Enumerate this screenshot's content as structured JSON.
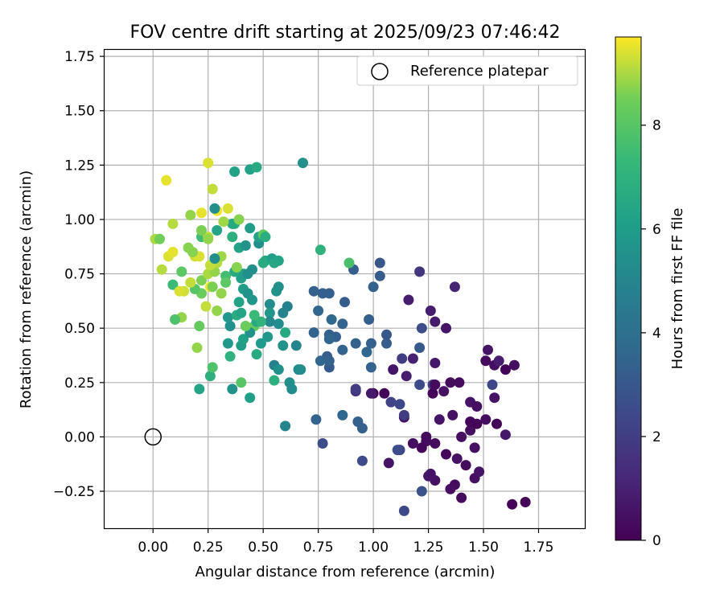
{
  "chart_data": {
    "type": "scatter",
    "title": "FOV centre drift starting at 2025/09/23 07:46:42",
    "xlabel": "Angular distance from reference (arcmin)",
    "ylabel": "Rotation from reference (arcmin)",
    "xlim": [
      -0.22,
      1.96
    ],
    "ylim": [
      -0.42,
      1.78
    ],
    "x_ticks": [
      "0.00",
      "0.25",
      "0.50",
      "0.75",
      "1.00",
      "1.25",
      "1.50",
      "1.75"
    ],
    "y_ticks": [
      "−0.25",
      "0.00",
      "0.25",
      "0.50",
      "0.75",
      "1.00",
      "1.25",
      "1.50",
      "1.75"
    ],
    "x_tick_values": [
      0,
      0.25,
      0.5,
      0.75,
      1.0,
      1.25,
      1.5,
      1.75
    ],
    "y_tick_values": [
      -0.25,
      0,
      0.25,
      0.5,
      0.75,
      1.0,
      1.25,
      1.5,
      1.75
    ],
    "grid": true,
    "legend": {
      "placement": "top-right",
      "entries": [
        "Reference platepar"
      ]
    },
    "reference_point": {
      "name": "Reference platepar",
      "x": 0.0,
      "y": 0.0
    },
    "colorbar": {
      "label": "Hours from first FF file",
      "range": [
        0,
        9.7
      ],
      "ticks": [
        "0",
        "2",
        "4",
        "6",
        "8"
      ],
      "tick_values": [
        0,
        2,
        4,
        6,
        8
      ],
      "colormap": "viridis"
    },
    "points": [
      [
        1.69,
        -0.3,
        0.1
      ],
      [
        1.63,
        -0.31,
        0.1
      ],
      [
        1.4,
        -0.28,
        0.3
      ],
      [
        1.37,
        -0.22,
        0.3
      ],
      [
        1.35,
        -0.24,
        0.4
      ],
      [
        1.28,
        -0.2,
        0.5
      ],
      [
        1.26,
        -0.17,
        0.6
      ],
      [
        1.25,
        -0.18,
        0.6
      ],
      [
        1.22,
        -0.25,
        2.8
      ],
      [
        1.14,
        -0.34,
        2.4
      ],
      [
        1.46,
        -0.19,
        0.5
      ],
      [
        1.48,
        -0.16,
        0.6
      ],
      [
        1.42,
        -0.13,
        0.3
      ],
      [
        1.46,
        -0.05,
        0.5
      ],
      [
        1.38,
        -0.1,
        0.5
      ],
      [
        1.33,
        -0.08,
        0.2
      ],
      [
        1.28,
        -0.03,
        0.3
      ],
      [
        1.24,
        -0.02,
        0.4
      ],
      [
        1.24,
        0.0,
        0.3
      ],
      [
        1.22,
        -0.05,
        0.2
      ],
      [
        1.18,
        -0.03,
        0.4
      ],
      [
        1.12,
        -0.06,
        2.2
      ],
      [
        1.11,
        -0.06,
        2.6
      ],
      [
        1.07,
        -0.12,
        0.6
      ],
      [
        0.95,
        -0.11,
        2.5
      ],
      [
        0.77,
        -0.03,
        2.6
      ],
      [
        0.93,
        0.07,
        3.4
      ],
      [
        0.95,
        0.04,
        3.3
      ],
      [
        0.86,
        0.1,
        3.6
      ],
      [
        0.74,
        0.08,
        3.5
      ],
      [
        1.4,
        0.0,
        0.4
      ],
      [
        1.44,
        0.03,
        0.4
      ],
      [
        1.44,
        0.07,
        0.2
      ],
      [
        1.47,
        0.06,
        0.1
      ],
      [
        1.51,
        0.08,
        0.4
      ],
      [
        1.56,
        0.06,
        0.1
      ],
      [
        1.6,
        0.01,
        0.7
      ],
      [
        1.36,
        0.1,
        0.5
      ],
      [
        1.3,
        0.08,
        0.6
      ],
      [
        1.14,
        0.09,
        0.5
      ],
      [
        1.14,
        0.1,
        2.0
      ],
      [
        1.08,
        0.16,
        2.2
      ],
      [
        1.12,
        0.15,
        2.4
      ],
      [
        1.15,
        0.28,
        0.9
      ],
      [
        1.09,
        0.31,
        0.6
      ],
      [
        1.0,
        0.2,
        0.2
      ],
      [
        1.05,
        0.2,
        0.1
      ],
      [
        1.21,
        0.24,
        2.5
      ],
      [
        1.27,
        0.24,
        2.1
      ],
      [
        1.27,
        0.2,
        0.1
      ],
      [
        1.32,
        0.21,
        0.5
      ],
      [
        1.28,
        0.24,
        0.3
      ],
      [
        1.35,
        0.25,
        0.3
      ],
      [
        1.39,
        0.25,
        0.3
      ],
      [
        1.44,
        0.16,
        0.6
      ],
      [
        1.47,
        0.14,
        0.4
      ],
      [
        1.54,
        0.24,
        2.4
      ],
      [
        1.55,
        0.18,
        0.6
      ],
      [
        1.51,
        0.35,
        0.3
      ],
      [
        1.55,
        0.33,
        0.4
      ],
      [
        1.6,
        0.31,
        0.1
      ],
      [
        1.64,
        0.33,
        0.4
      ],
      [
        1.52,
        0.4,
        0.6
      ],
      [
        1.57,
        0.35,
        0.9
      ],
      [
        1.28,
        0.34,
        0.7
      ],
      [
        1.18,
        0.36,
        1.0
      ],
      [
        1.13,
        0.36,
        2.0
      ],
      [
        1.22,
        0.5,
        2.6
      ],
      [
        1.26,
        0.58,
        0.9
      ],
      [
        1.28,
        0.53,
        0.8
      ],
      [
        1.33,
        0.5,
        0.6
      ],
      [
        1.16,
        0.63,
        0.9
      ],
      [
        1.21,
        0.76,
        1.7
      ],
      [
        1.37,
        0.69,
        1.1
      ],
      [
        1.21,
        0.41,
        3.1
      ],
      [
        1.06,
        0.43,
        3.2
      ],
      [
        1.06,
        0.47,
        3.0
      ],
      [
        0.99,
        0.43,
        3.4
      ],
      [
        0.97,
        0.39,
        3.6
      ],
      [
        0.99,
        0.32,
        3.4
      ],
      [
        0.98,
        0.54,
        3.3
      ],
      [
        0.92,
        0.43,
        3.4
      ],
      [
        0.86,
        0.4,
        3.5
      ],
      [
        0.83,
        0.46,
        3.3
      ],
      [
        0.8,
        0.47,
        3.4
      ],
      [
        0.8,
        0.45,
        3.6
      ],
      [
        0.8,
        0.32,
        3.1
      ],
      [
        0.79,
        0.37,
        3.2
      ],
      [
        0.8,
        0.35,
        3.4
      ],
      [
        0.76,
        0.35,
        3.6
      ],
      [
        0.73,
        0.48,
        3.5
      ],
      [
        0.75,
        0.58,
        3.6
      ],
      [
        0.73,
        0.67,
        3.4
      ],
      [
        0.77,
        0.66,
        3.3
      ],
      [
        0.8,
        0.66,
        3.3
      ],
      [
        0.81,
        0.54,
        3.7
      ],
      [
        0.86,
        0.52,
        3.5
      ],
      [
        0.87,
        0.62,
        3.2
      ],
      [
        0.91,
        0.77,
        3.3
      ],
      [
        1.0,
        0.69,
        3.4
      ],
      [
        1.03,
        0.74,
        3.2
      ],
      [
        1.03,
        0.8,
        3.0
      ],
      [
        0.92,
        0.21,
        1.6
      ],
      [
        0.92,
        0.22,
        2.0
      ],
      [
        0.99,
        0.2,
        0.8
      ],
      [
        0.6,
        0.05,
        5.0
      ],
      [
        0.66,
        0.31,
        5.2
      ],
      [
        0.67,
        0.31,
        5.3
      ],
      [
        0.62,
        0.25,
        5.4
      ],
      [
        0.63,
        0.22,
        5.3
      ],
      [
        0.55,
        0.33,
        4.8
      ],
      [
        0.57,
        0.31,
        5.5
      ],
      [
        0.55,
        0.26,
        6.9
      ],
      [
        0.65,
        0.42,
        5.0
      ],
      [
        0.59,
        0.42,
        5.6
      ],
      [
        0.6,
        0.48,
        6.6
      ],
      [
        0.57,
        0.52,
        5.3
      ],
      [
        0.59,
        0.57,
        4.9
      ],
      [
        0.61,
        0.6,
        4.8
      ],
      [
        0.56,
        0.67,
        5.6
      ],
      [
        0.57,
        0.69,
        5.5
      ],
      [
        0.53,
        0.61,
        5.3
      ],
      [
        0.53,
        0.57,
        5.7
      ],
      [
        0.53,
        0.53,
        5.1
      ],
      [
        0.52,
        0.46,
        5.8
      ],
      [
        0.49,
        0.43,
        5.9
      ],
      [
        0.47,
        0.38,
        6.6
      ],
      [
        0.44,
        0.18,
        6.1
      ],
      [
        0.36,
        0.22,
        5.6
      ],
      [
        0.4,
        0.25,
        8.0
      ],
      [
        0.35,
        0.37,
        7.0
      ],
      [
        0.34,
        0.43,
        5.8
      ],
      [
        0.4,
        0.42,
        6.0
      ],
      [
        0.41,
        0.45,
        6.2
      ],
      [
        0.46,
        0.51,
        8.3
      ],
      [
        0.44,
        0.48,
        5.6
      ],
      [
        0.47,
        0.53,
        6.5
      ],
      [
        0.49,
        0.53,
        7.1
      ],
      [
        0.46,
        0.56,
        7.4
      ],
      [
        0.42,
        0.51,
        8.4
      ],
      [
        0.35,
        0.51,
        5.5
      ],
      [
        0.34,
        0.55,
        5.8
      ],
      [
        0.38,
        0.56,
        6.7
      ],
      [
        0.4,
        0.57,
        6.4
      ],
      [
        0.39,
        0.62,
        6.3
      ],
      [
        0.41,
        0.68,
        6.0
      ],
      [
        0.43,
        0.66,
        5.6
      ],
      [
        0.45,
        0.63,
        5.7
      ],
      [
        0.45,
        0.77,
        5.4
      ],
      [
        0.41,
        0.75,
        6.2
      ],
      [
        0.4,
        0.73,
        6.1
      ],
      [
        0.37,
        0.76,
        6.6
      ],
      [
        0.38,
        0.78,
        8.7
      ],
      [
        0.33,
        0.74,
        7.6
      ],
      [
        0.31,
        0.66,
        8.8
      ],
      [
        0.33,
        0.71,
        8.1
      ],
      [
        0.29,
        0.58,
        8.8
      ],
      [
        0.24,
        0.6,
        9.2
      ],
      [
        0.26,
        0.69,
        9.6
      ],
      [
        0.22,
        0.66,
        8.4
      ],
      [
        0.19,
        0.68,
        8.0
      ],
      [
        0.22,
        0.72,
        8.6
      ],
      [
        0.25,
        0.75,
        9.0
      ],
      [
        0.28,
        0.76,
        8.8
      ],
      [
        0.29,
        0.8,
        9.1
      ],
      [
        0.31,
        0.83,
        8.9
      ],
      [
        0.26,
        0.79,
        9.2
      ],
      [
        0.28,
        0.82,
        5.4
      ],
      [
        0.19,
        0.83,
        9.3
      ],
      [
        0.21,
        0.83,
        9.4
      ],
      [
        0.18,
        0.85,
        8.7
      ],
      [
        0.16,
        0.87,
        8.7
      ],
      [
        0.13,
        0.76,
        8.1
      ],
      [
        0.09,
        0.7,
        7.4
      ],
      [
        0.04,
        0.77,
        9.1
      ],
      [
        0.07,
        0.83,
        9.4
      ],
      [
        0.09,
        0.85,
        9.5
      ],
      [
        0.14,
        0.67,
        9.3
      ],
      [
        0.12,
        0.67,
        9.4
      ],
      [
        0.13,
        0.55,
        8.8
      ],
      [
        0.1,
        0.54,
        7.8
      ],
      [
        0.17,
        0.71,
        9.2
      ],
      [
        0.21,
        0.51,
        8.3
      ],
      [
        0.2,
        0.41,
        8.8
      ],
      [
        0.21,
        0.22,
        6.4
      ],
      [
        0.26,
        0.28,
        6.9
      ],
      [
        0.27,
        0.32,
        7.8
      ],
      [
        0.27,
        0.69,
        8.6
      ],
      [
        0.22,
        0.92,
        7.5
      ],
      [
        0.25,
        0.92,
        9.2
      ],
      [
        0.22,
        0.95,
        8.6
      ],
      [
        0.25,
        0.91,
        8.8
      ],
      [
        0.29,
        0.95,
        6.4
      ],
      [
        0.36,
        0.92,
        6.9
      ],
      [
        0.39,
        0.87,
        6.3
      ],
      [
        0.42,
        0.88,
        5.6
      ],
      [
        0.44,
        0.96,
        6.0
      ],
      [
        0.48,
        0.89,
        5.4
      ],
      [
        0.48,
        0.92,
        6.2
      ],
      [
        0.5,
        0.93,
        8.2
      ],
      [
        0.51,
        0.92,
        6.8
      ],
      [
        0.5,
        0.8,
        6.7
      ],
      [
        0.51,
        0.81,
        6.6
      ],
      [
        0.54,
        0.82,
        6.1
      ],
      [
        0.55,
        0.8,
        6.5
      ],
      [
        0.57,
        0.81,
        6.4
      ],
      [
        0.43,
        0.75,
        5.4
      ],
      [
        0.37,
        0.98,
        6.9
      ],
      [
        0.36,
        0.98,
        6.6
      ],
      [
        0.39,
        1.0,
        8.7
      ],
      [
        0.29,
        1.04,
        9.6
      ],
      [
        0.34,
        1.05,
        9.4
      ],
      [
        0.32,
        0.99,
        8.9
      ],
      [
        0.28,
        1.05,
        5.4
      ],
      [
        0.22,
        1.03,
        9.5
      ],
      [
        0.17,
        1.02,
        8.8
      ],
      [
        0.27,
        1.14,
        9.2
      ],
      [
        0.09,
        0.98,
        9.1
      ],
      [
        0.01,
        0.91,
        9.0
      ],
      [
        0.03,
        0.91,
        8.5
      ],
      [
        0.06,
        1.18,
        9.5
      ],
      [
        0.25,
        1.26,
        9.4
      ],
      [
        0.37,
        1.22,
        6.2
      ],
      [
        0.44,
        1.23,
        6.2
      ],
      [
        0.47,
        1.24,
        6.6
      ],
      [
        0.68,
        1.26,
        5.5
      ],
      [
        0.76,
        0.86,
        7.0
      ],
      [
        0.89,
        0.8,
        7.7
      ]
    ]
  }
}
